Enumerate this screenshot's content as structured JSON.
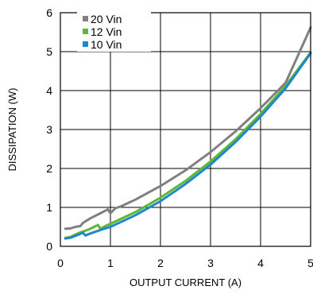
{
  "chart_data": {
    "type": "line",
    "title": "",
    "xlabel": "OUTPUT CURRENT (A)",
    "ylabel": "DISSIPATION (W)",
    "xlim": [
      0,
      5
    ],
    "ylim": [
      0,
      6
    ],
    "xticks": [
      0,
      1,
      2,
      3,
      4,
      5
    ],
    "yticks": [
      0,
      1,
      2,
      3,
      4,
      5,
      6
    ],
    "xtick_labels": [
      "0",
      "1",
      "2",
      "3",
      "4",
      "5"
    ],
    "ytick_labels": [
      "0",
      "1",
      "2",
      "3",
      "4",
      "5",
      "6"
    ],
    "grid": true,
    "legend_position": "top-left",
    "series": [
      {
        "name": "20 Vin",
        "color": "#808080",
        "x": [
          0.1,
          0.2,
          0.3,
          0.4,
          0.45,
          0.6,
          0.8,
          0.95,
          1.0,
          1.1,
          1.2,
          1.5,
          2.0,
          2.5,
          3.0,
          3.5,
          4.0,
          4.5,
          5.0
        ],
        "y": [
          0.45,
          0.46,
          0.5,
          0.52,
          0.6,
          0.72,
          0.85,
          0.95,
          0.85,
          0.98,
          1.02,
          1.2,
          1.55,
          1.95,
          2.42,
          2.95,
          3.55,
          4.2,
          5.62
        ]
      },
      {
        "name": "12 Vin",
        "color": "#5fb832",
        "x": [
          0.1,
          0.2,
          0.3,
          0.4,
          0.5,
          0.6,
          0.75,
          0.8,
          0.9,
          1.0,
          1.5,
          2.0,
          2.5,
          3.0,
          3.5,
          4.0,
          4.5,
          5.0
        ],
        "y": [
          0.22,
          0.24,
          0.3,
          0.36,
          0.4,
          0.45,
          0.55,
          0.45,
          0.52,
          0.58,
          0.88,
          1.25,
          1.68,
          2.18,
          2.75,
          3.4,
          4.12,
          4.98
        ]
      },
      {
        "name": "10 Vin",
        "color": "#1e88c8",
        "x": [
          0.1,
          0.2,
          0.3,
          0.4,
          0.45,
          0.5,
          0.6,
          0.8,
          1.0,
          1.5,
          2.0,
          2.5,
          3.0,
          3.5,
          4.0,
          4.5,
          5.0
        ],
        "y": [
          0.2,
          0.22,
          0.27,
          0.32,
          0.35,
          0.28,
          0.33,
          0.42,
          0.5,
          0.8,
          1.16,
          1.6,
          2.1,
          2.68,
          3.33,
          4.06,
          4.96
        ]
      }
    ]
  }
}
